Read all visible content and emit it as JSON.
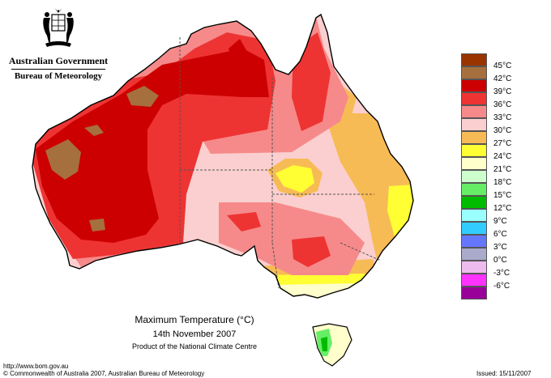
{
  "header": {
    "government": "Australian Government",
    "bureau": "Bureau of Meteorology"
  },
  "legend": {
    "items": [
      {
        "label": "45°C",
        "color": "#993300"
      },
      {
        "label": "42°C",
        "color": "#a66f3e"
      },
      {
        "label": "39°C",
        "color": "#cc0000"
      },
      {
        "label": "36°C",
        "color": "#ee3333"
      },
      {
        "label": "33°C",
        "color": "#f68a8a"
      },
      {
        "label": "30°C",
        "color": "#fbcfcf"
      },
      {
        "label": "27°C",
        "color": "#f7bb55"
      },
      {
        "label": "24°C",
        "color": "#ffff33"
      },
      {
        "label": "21°C",
        "color": "#ffffcc"
      },
      {
        "label": "18°C",
        "color": "#ccffcc"
      },
      {
        "label": "15°C",
        "color": "#66ee66"
      },
      {
        "label": "12°C",
        "color": "#00bb00"
      },
      {
        "label": "9°C",
        "color": "#99ffff"
      },
      {
        "label": "6°C",
        "color": "#33ccff"
      },
      {
        "label": "3°C",
        "color": "#6677ff"
      },
      {
        "label": "0°C",
        "color": "#aaaacc"
      },
      {
        "label": "-3°C",
        "color": "#eebbee"
      },
      {
        "label": "-6°C",
        "color": "#ff33ff"
      },
      {
        "extra_color": "#990099"
      }
    ]
  },
  "caption": {
    "title": "Maximum Temperature (°C)",
    "date": "14th November 2007",
    "product": "Product of the National Climate Centre"
  },
  "footer": {
    "url": "http://www.bom.gov.au",
    "copyright": "© Commonwealth of Australia 2007, Australian Bureau of Meteorology",
    "issued": "Issued: 15/11/2007"
  }
}
